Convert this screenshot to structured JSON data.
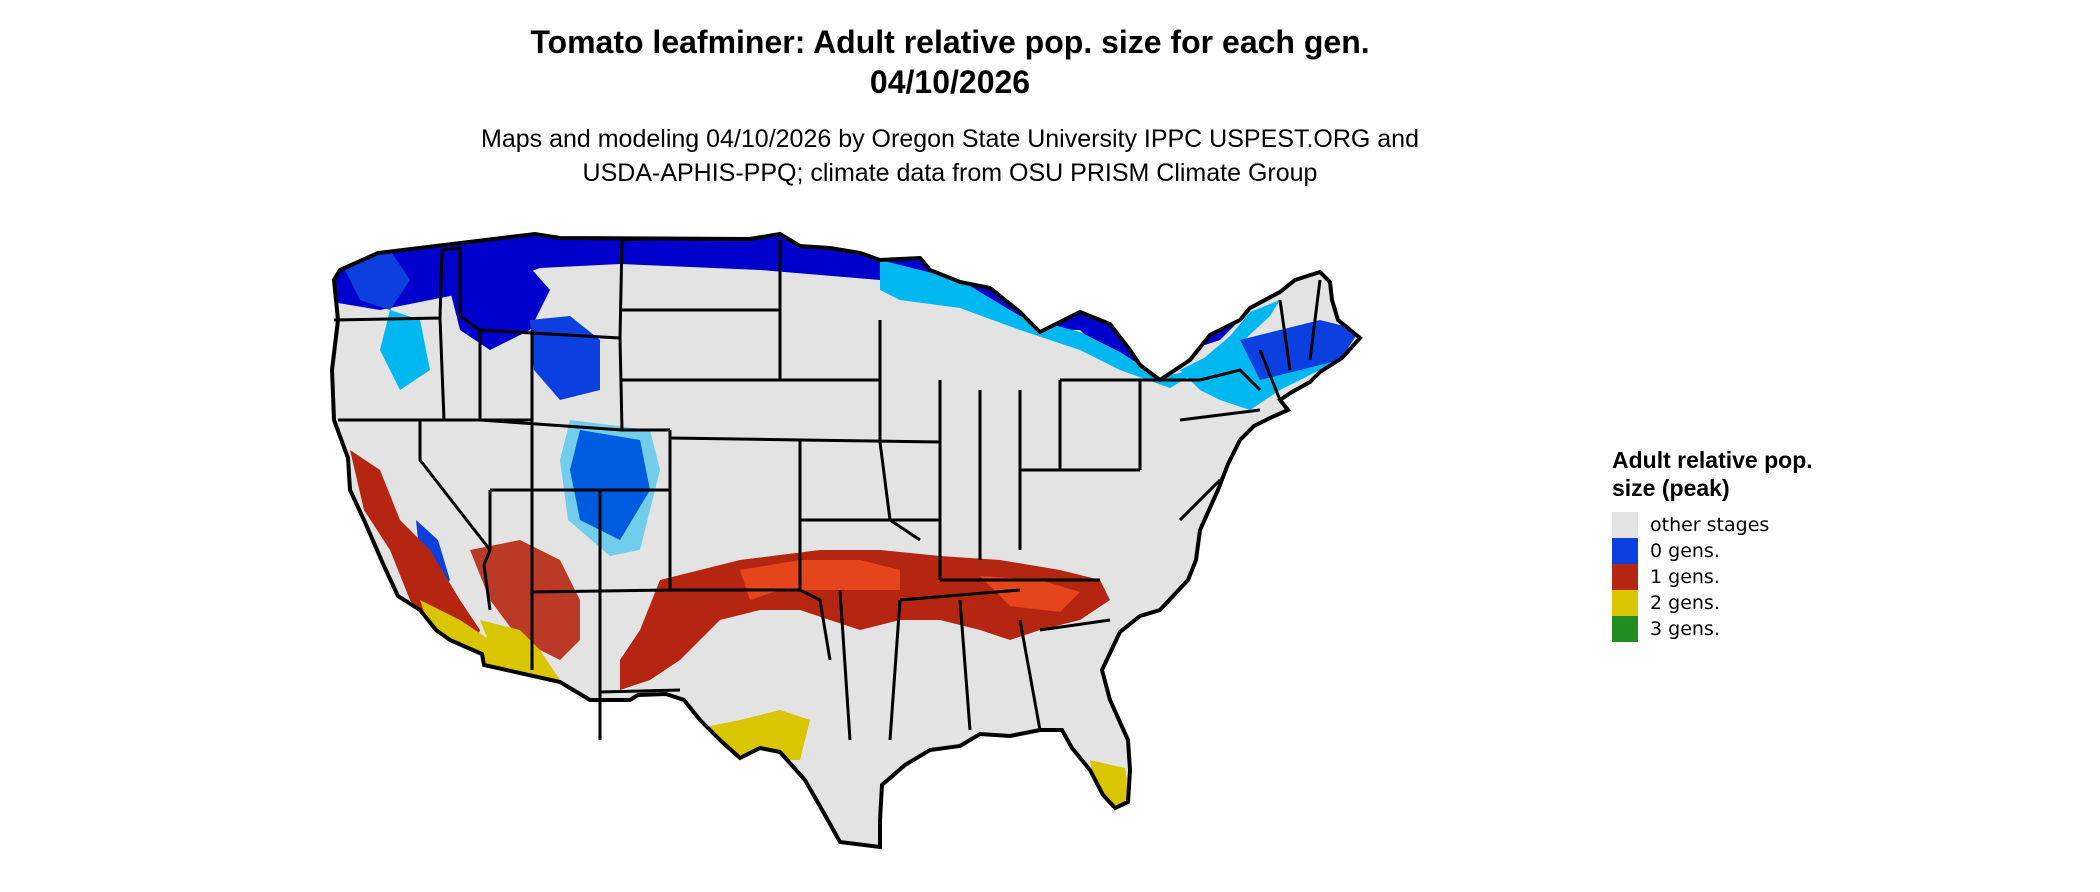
{
  "title": {
    "line1": "Tomato leafminer: Adult relative pop. size for each gen.",
    "line2": "04/10/2026"
  },
  "subtitle": {
    "line1": "Maps and modeling 04/10/2026 by Oregon State University IPPC USPEST.ORG and",
    "line2": "USDA-APHIS-PPQ; climate data from OSU PRISM Climate Group"
  },
  "legend": {
    "title": "Adult relative pop. size (peak)",
    "items": [
      {
        "label": "other stages",
        "color": "#e3e3e3"
      },
      {
        "label": "0 gens.",
        "color": "#0b3fe0"
      },
      {
        "label": "1 gens.",
        "color": "#b52612"
      },
      {
        "label": "2 gens.",
        "color": "#d9c500"
      },
      {
        "label": "3 gens.",
        "color": "#228b22"
      }
    ]
  },
  "map": {
    "region": "Contiguous United States",
    "background_color": "#e3e3e3",
    "border_color": "#000000",
    "cold_color_dark": "#0000cc",
    "cold_color_light": "#00b8f0",
    "warm_color": "#b52612",
    "warm_color_light": "#e5451a",
    "hot_color": "#d9c500"
  }
}
